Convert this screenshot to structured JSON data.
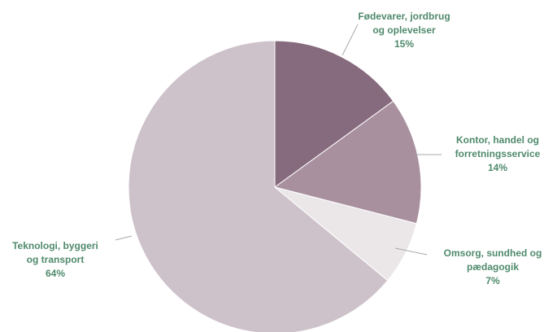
{
  "chart_data": {
    "type": "pie",
    "title": "",
    "slices": [
      {
        "label_lines": [
          "Fødevarer, jordbrug",
          "og oplevelser"
        ],
        "value": 15,
        "value_label": "15%",
        "color": "#866a7d"
      },
      {
        "label_lines": [
          "Kontor, handel og",
          "forretningsservice"
        ],
        "value": 14,
        "value_label": "14%",
        "color": "#a9909f"
      },
      {
        "label_lines": [
          "Omsorg, sundhed og",
          "pædagogik"
        ],
        "value": 7,
        "value_label": "7%",
        "color": "#ebe7e9"
      },
      {
        "label_lines": [
          "Teknologi, byggeri",
          "og transport"
        ],
        "value": 64,
        "value_label": "64%",
        "color": "#cec2ca"
      }
    ],
    "start_angle": "12 o'clock",
    "direction": "clockwise",
    "legend": "none",
    "label_color": "#4f8a6c"
  }
}
